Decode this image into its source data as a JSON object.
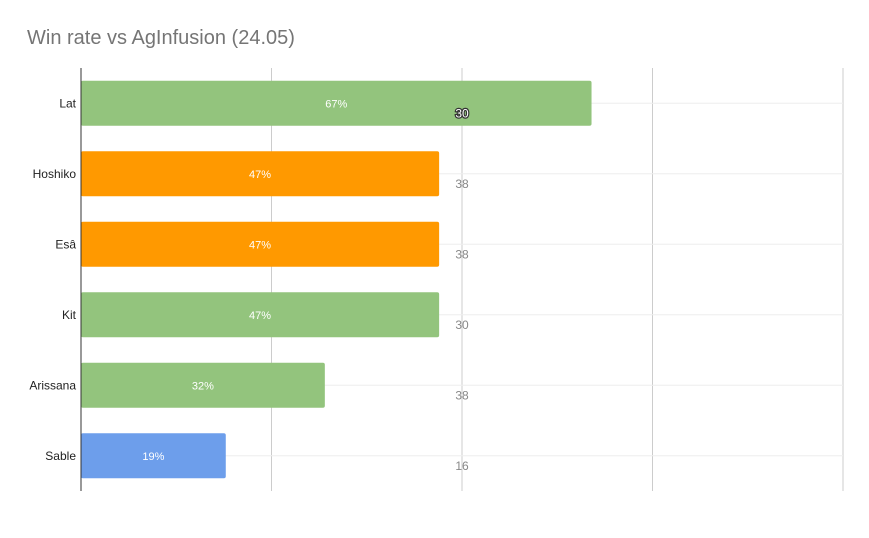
{
  "title": "Win rate vs AgInfusion (24.05)",
  "colors": {
    "green": "#93c47d",
    "orange": "#ff9900",
    "blue": "#6d9eeb"
  },
  "chart_data": {
    "type": "bar",
    "orientation": "horizontal",
    "title": "Win rate vs AgInfusion (24.05)",
    "xlabel": "",
    "ylabel": "",
    "xlim": [
      0,
      100
    ],
    "grid": true,
    "legend": "none",
    "categories": [
      "Lat",
      "Hoshiko",
      "Esâ",
      "Kit",
      "Arissana",
      "Sable"
    ],
    "series": [
      {
        "values": [
          67,
          47,
          47,
          47,
          32,
          19
        ],
        "data_labels": [
          "67%",
          "47%",
          "47%",
          "47%",
          "32%",
          "19%"
        ],
        "bar_colors": [
          "#93c47d",
          "#ff9900",
          "#ff9900",
          "#93c47d",
          "#93c47d",
          "#6d9eeb"
        ]
      },
      {
        "values": [
          30,
          38,
          38,
          30,
          38,
          16
        ],
        "data_labels": [
          "30",
          "38",
          "38",
          "30",
          "38",
          "16"
        ]
      }
    ]
  }
}
